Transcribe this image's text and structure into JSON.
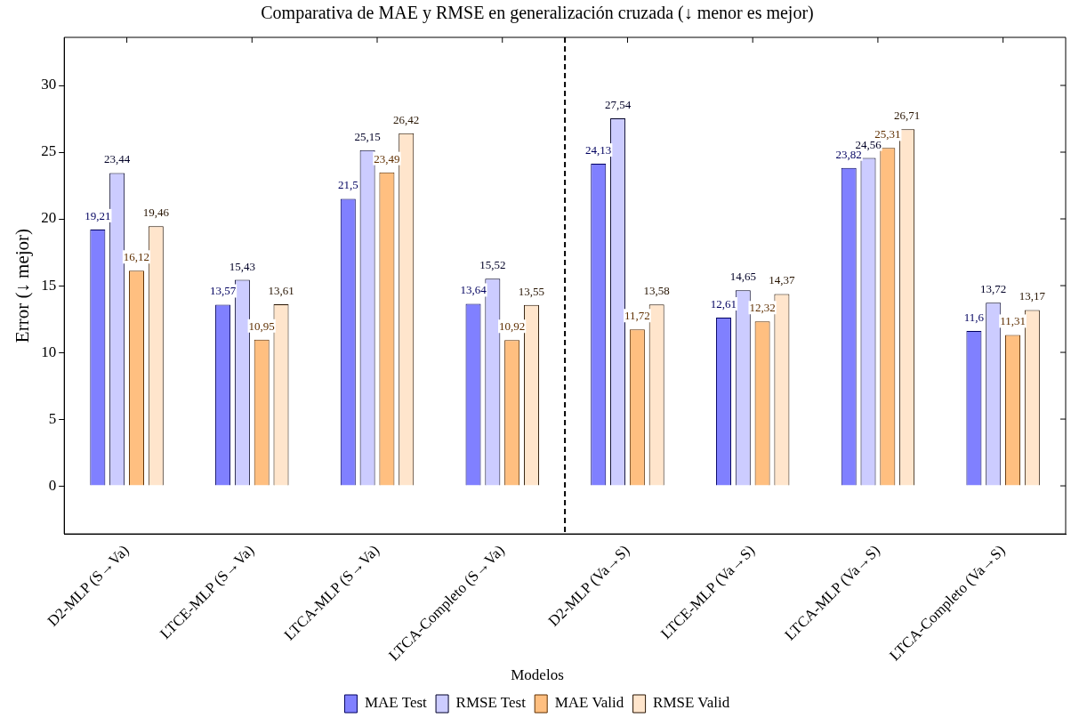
{
  "chart_data": {
    "type": "bar",
    "title": "Comparativa de MAE y RMSE en generalización cruzada (↓ menor es mejor)",
    "ylabel": "Error (↓ mejor)",
    "legend_title": "Modelos",
    "legend": "bottom",
    "categories": [
      "D2-MLP (S→Va)",
      "LTCE-MLP (S→Va)",
      "LTCA-MLP (S→Va)",
      "LTCA-Completo (S→Va)",
      "D2-MLP (Va→S)",
      "LTCE-MLP (Va→S)",
      "LTCA-MLP (Va→S)",
      "LTCA-Completo (Va→S)"
    ],
    "series": [
      {
        "name": "MAE Test",
        "color": "#8080ff",
        "values": [
          19.21,
          13.57,
          21.5,
          13.64,
          24.13,
          12.61,
          23.82,
          11.6
        ],
        "value_labels": [
          "19,21",
          "13,57",
          "21,5",
          "13,64",
          "24,13",
          "12,61",
          "23,82",
          "11,6"
        ]
      },
      {
        "name": "RMSE Test",
        "color": "#ccccff",
        "values": [
          23.44,
          15.43,
          25.15,
          15.52,
          27.54,
          14.65,
          24.56,
          13.72
        ],
        "value_labels": [
          "23,44",
          "15,43",
          "25,15",
          "15,52",
          "27,54",
          "14,65",
          "24,56",
          "13,72"
        ]
      },
      {
        "name": "MAE Valid",
        "color": "#ffbf80",
        "values": [
          16.12,
          10.95,
          23.49,
          10.92,
          11.72,
          12.32,
          25.31,
          11.31
        ],
        "value_labels": [
          "16,12",
          "10,95",
          "23,49",
          "10,92",
          "11,72",
          "12,32",
          "25,31",
          "11,31"
        ]
      },
      {
        "name": "RMSE Valid",
        "color": "#ffe5cc",
        "values": [
          19.46,
          13.61,
          26.42,
          13.55,
          13.58,
          14.37,
          26.71,
          13.17
        ],
        "value_labels": [
          "19,46",
          "13,61",
          "26,42",
          "13,55",
          "13,58",
          "14,37",
          "26,71",
          "13,17"
        ]
      }
    ],
    "ylim": [
      -3.6,
      33.6
    ],
    "yticks": [
      0,
      5,
      10,
      15,
      20,
      25,
      30
    ],
    "grid": false
  }
}
